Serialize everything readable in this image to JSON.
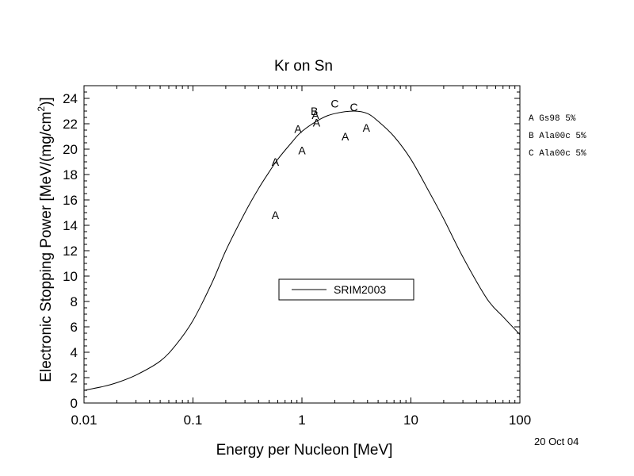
{
  "chart_data": {
    "type": "line",
    "title": "Kr on Sn",
    "xlabel": "Energy per Nucleon [MeV]",
    "ylabel_main": "Electronic Stopping Power [MeV/(mg/cm",
    "ylabel_sup": "2",
    "ylabel_end": ")]",
    "xscale": "log",
    "xlim": [
      0.01,
      100
    ],
    "ylim": [
      0,
      25
    ],
    "x_ticks": [
      {
        "value": 0.01,
        "label": "0.01"
      },
      {
        "value": 0.1,
        "label": "0.1"
      },
      {
        "value": 1,
        "label": "1"
      },
      {
        "value": 10,
        "label": "10"
      },
      {
        "value": 100,
        "label": "100"
      }
    ],
    "y_ticks": [
      0,
      2,
      4,
      6,
      8,
      10,
      12,
      14,
      16,
      18,
      20,
      22,
      24
    ],
    "series": [
      {
        "name": "SRIM2003",
        "x": [
          0.01,
          0.015,
          0.02,
          0.03,
          0.05,
          0.07,
          0.1,
          0.15,
          0.2,
          0.3,
          0.4,
          0.5,
          0.6,
          0.8,
          1.0,
          1.5,
          2.0,
          3.0,
          4.0,
          5.0,
          7.0,
          10,
          15,
          20,
          30,
          50,
          70,
          100
        ],
        "y": [
          1.0,
          1.3,
          1.6,
          2.2,
          3.3,
          4.6,
          6.5,
          9.5,
          12.0,
          15.0,
          16.9,
          18.2,
          19.2,
          20.5,
          21.4,
          22.4,
          22.8,
          23.0,
          22.8,
          22.2,
          21.0,
          19.2,
          16.5,
          14.5,
          11.5,
          8.2,
          6.8,
          5.4
        ]
      }
    ],
    "points": [
      {
        "label": "A",
        "x": 0.57,
        "y": 19.0
      },
      {
        "label": "A",
        "x": 0.57,
        "y": 14.8
      },
      {
        "label": "A",
        "x": 0.92,
        "y": 21.6
      },
      {
        "label": "A",
        "x": 1.0,
        "y": 19.9
      },
      {
        "label": "B",
        "x": 1.3,
        "y": 23.0
      },
      {
        "label": "A",
        "x": 1.33,
        "y": 22.7
      },
      {
        "label": "A",
        "x": 1.36,
        "y": 22.1
      },
      {
        "label": "C",
        "x": 2.0,
        "y": 23.6
      },
      {
        "label": "A",
        "x": 2.5,
        "y": 21.0
      },
      {
        "label": "C",
        "x": 3.0,
        "y": 23.3
      },
      {
        "label": "A",
        "x": 3.9,
        "y": 21.7
      }
    ],
    "legend": {
      "position": "center",
      "label": "SRIM2003"
    },
    "source_legend": [
      {
        "letter": "A",
        "text": "Gs98   5%"
      },
      {
        "letter": "B",
        "text": "Ala00c 5%"
      },
      {
        "letter": "C",
        "text": "Ala00c 5%"
      }
    ],
    "grid": false
  },
  "date_text": "20 Oct 04"
}
